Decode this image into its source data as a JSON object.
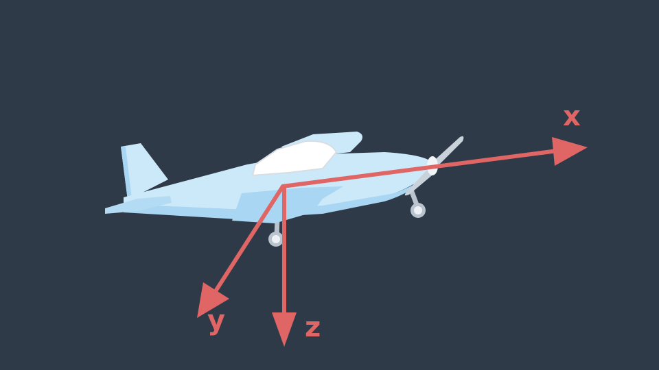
{
  "axes": {
    "x": "x",
    "y": "y",
    "z": "z"
  },
  "colors": {
    "background": "#2f3a48",
    "axis": "#e06666",
    "fuselage": "#cce9f9",
    "fuselage_shade": "#a9d6f2",
    "canopy": "#ffffff"
  }
}
